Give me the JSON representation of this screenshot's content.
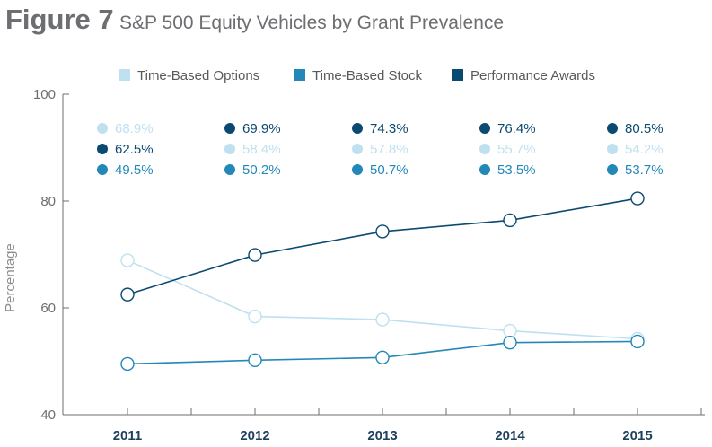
{
  "header": {
    "figure_label": "Figure 7",
    "subtitle": "S&P 500 Equity Vehicles by Grant Prevalence"
  },
  "colors": {
    "time_based_options": "#bfe0f0",
    "time_based_stock": "#2388b8",
    "performance_awards": "#0b4a70",
    "axis": "#6d6e71"
  },
  "chart_data": {
    "type": "line",
    "title": "S&P 500 Equity Vehicles by Grant Prevalence",
    "xlabel": "",
    "ylabel": "Percentage",
    "categories": [
      "2011",
      "2012",
      "2013",
      "2014",
      "2015"
    ],
    "ylim": [
      40,
      100
    ],
    "yticks": [
      "40",
      "60",
      "80",
      "100"
    ],
    "legend_position": "top-center",
    "series": [
      {
        "name": "Time-Based Options",
        "color": "#bfe0f0",
        "values": [
          68.9,
          58.4,
          57.8,
          55.7,
          54.2
        ]
      },
      {
        "name": "Time-Based Stock",
        "color": "#2388b8",
        "values": [
          49.5,
          50.2,
          50.7,
          53.5,
          53.7
        ]
      },
      {
        "name": "Performance Awards",
        "color": "#0b4a70",
        "values": [
          62.5,
          69.9,
          74.3,
          76.4,
          80.5
        ]
      }
    ],
    "data_labels": [
      [
        {
          "series": 0,
          "text": "68.9%"
        },
        {
          "series": 2,
          "text": "62.5%"
        },
        {
          "series": 1,
          "text": "49.5%"
        }
      ],
      [
        {
          "series": 2,
          "text": "69.9%"
        },
        {
          "series": 0,
          "text": "58.4%"
        },
        {
          "series": 1,
          "text": "50.2%"
        }
      ],
      [
        {
          "series": 2,
          "text": "74.3%"
        },
        {
          "series": 0,
          "text": "57.8%"
        },
        {
          "series": 1,
          "text": "50.7%"
        }
      ],
      [
        {
          "series": 2,
          "text": "76.4%"
        },
        {
          "series": 0,
          "text": "55.7%"
        },
        {
          "series": 1,
          "text": "53.5%"
        }
      ],
      [
        {
          "series": 2,
          "text": "80.5%"
        },
        {
          "series": 0,
          "text": "54.2%"
        },
        {
          "series": 1,
          "text": "53.7%"
        }
      ]
    ]
  }
}
